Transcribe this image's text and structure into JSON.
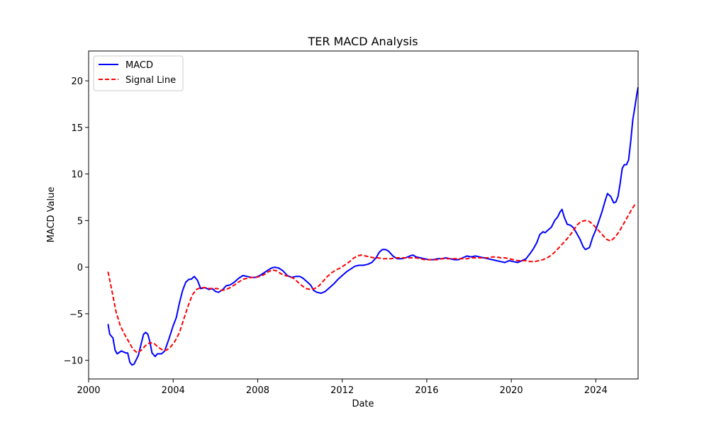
{
  "chart_data": {
    "type": "line",
    "title": "TER MACD Analysis",
    "xlabel": "Date",
    "ylabel": "MACD Value",
    "xlim": [
      2000.0,
      2026.0
    ],
    "ylim": [
      -12.0,
      23.2
    ],
    "xticks": [
      {
        "value": 2000,
        "label": "2000"
      },
      {
        "value": 2004,
        "label": "2004"
      },
      {
        "value": 2008,
        "label": "2008"
      },
      {
        "value": 2012,
        "label": "2012"
      },
      {
        "value": 2016,
        "label": "2016"
      },
      {
        "value": 2020,
        "label": "2020"
      },
      {
        "value": 2024,
        "label": "2024"
      }
    ],
    "yticks": [
      {
        "value": -10,
        "label": "−10"
      },
      {
        "value": -5,
        "label": "−5"
      },
      {
        "value": 0,
        "label": "0"
      },
      {
        "value": 5,
        "label": "5"
      },
      {
        "value": 10,
        "label": "10"
      },
      {
        "value": 15,
        "label": "15"
      },
      {
        "value": 20,
        "label": "20"
      }
    ],
    "grid": false,
    "legend_position": "upper-left",
    "series": [
      {
        "name": "MACD",
        "color": "#0000ff",
        "style": "solid",
        "points": [
          [
            2000.92,
            -6.1
          ],
          [
            2001.0,
            -7.2
          ],
          [
            2001.15,
            -7.6
          ],
          [
            2001.25,
            -8.9
          ],
          [
            2001.35,
            -9.3
          ],
          [
            2001.55,
            -9.0
          ],
          [
            2001.75,
            -9.2
          ],
          [
            2001.85,
            -9.2
          ],
          [
            2001.95,
            -10.2
          ],
          [
            2002.05,
            -10.5
          ],
          [
            2002.15,
            -10.4
          ],
          [
            2002.35,
            -9.5
          ],
          [
            2002.5,
            -8.1
          ],
          [
            2002.6,
            -7.2
          ],
          [
            2002.7,
            -7.0
          ],
          [
            2002.8,
            -7.2
          ],
          [
            2002.9,
            -8.0
          ],
          [
            2003.0,
            -9.2
          ],
          [
            2003.15,
            -9.6
          ],
          [
            2003.25,
            -9.3
          ],
          [
            2003.45,
            -9.3
          ],
          [
            2003.6,
            -9.0
          ],
          [
            2003.8,
            -7.7
          ],
          [
            2004.0,
            -6.3
          ],
          [
            2004.15,
            -5.4
          ],
          [
            2004.3,
            -3.8
          ],
          [
            2004.45,
            -2.5
          ],
          [
            2004.6,
            -1.6
          ],
          [
            2004.75,
            -1.3
          ],
          [
            2004.85,
            -1.3
          ],
          [
            2005.0,
            -1.0
          ],
          [
            2005.15,
            -1.4
          ],
          [
            2005.3,
            -2.3
          ],
          [
            2005.5,
            -2.2
          ],
          [
            2005.7,
            -2.4
          ],
          [
            2005.85,
            -2.3
          ],
          [
            2006.0,
            -2.6
          ],
          [
            2006.15,
            -2.7
          ],
          [
            2006.35,
            -2.4
          ],
          [
            2006.5,
            -2.0
          ],
          [
            2006.7,
            -1.9
          ],
          [
            2006.9,
            -1.6
          ],
          [
            2007.1,
            -1.2
          ],
          [
            2007.3,
            -0.9
          ],
          [
            2007.5,
            -1.0
          ],
          [
            2007.7,
            -1.1
          ],
          [
            2007.9,
            -1.1
          ],
          [
            2008.1,
            -0.9
          ],
          [
            2008.3,
            -0.6
          ],
          [
            2008.5,
            -0.3
          ],
          [
            2008.65,
            -0.1
          ],
          [
            2008.8,
            0.0
          ],
          [
            2009.0,
            -0.1
          ],
          [
            2009.2,
            -0.4
          ],
          [
            2009.4,
            -0.9
          ],
          [
            2009.6,
            -1.1
          ],
          [
            2009.8,
            -1.0
          ],
          [
            2010.0,
            -1.0
          ],
          [
            2010.15,
            -1.2
          ],
          [
            2010.3,
            -1.5
          ],
          [
            2010.5,
            -1.9
          ],
          [
            2010.65,
            -2.5
          ],
          [
            2010.8,
            -2.7
          ],
          [
            2011.0,
            -2.8
          ],
          [
            2011.2,
            -2.6
          ],
          [
            2011.4,
            -2.2
          ],
          [
            2011.6,
            -1.8
          ],
          [
            2011.8,
            -1.3
          ],
          [
            2012.0,
            -0.9
          ],
          [
            2012.2,
            -0.5
          ],
          [
            2012.4,
            -0.2
          ],
          [
            2012.6,
            0.1
          ],
          [
            2012.8,
            0.2
          ],
          [
            2013.0,
            0.2
          ],
          [
            2013.2,
            0.3
          ],
          [
            2013.4,
            0.5
          ],
          [
            2013.6,
            1.0
          ],
          [
            2013.75,
            1.6
          ],
          [
            2013.9,
            1.9
          ],
          [
            2014.05,
            1.9
          ],
          [
            2014.2,
            1.7
          ],
          [
            2014.4,
            1.2
          ],
          [
            2014.6,
            0.9
          ],
          [
            2014.8,
            0.9
          ],
          [
            2015.0,
            1.0
          ],
          [
            2015.2,
            1.2
          ],
          [
            2015.35,
            1.3
          ],
          [
            2015.5,
            1.1
          ],
          [
            2015.7,
            1.0
          ],
          [
            2015.9,
            0.9
          ],
          [
            2016.1,
            0.8
          ],
          [
            2016.3,
            0.8
          ],
          [
            2016.5,
            0.9
          ],
          [
            2016.7,
            0.9
          ],
          [
            2016.9,
            1.0
          ],
          [
            2017.1,
            0.9
          ],
          [
            2017.3,
            0.8
          ],
          [
            2017.5,
            0.8
          ],
          [
            2017.7,
            1.0
          ],
          [
            2017.9,
            1.2
          ],
          [
            2018.1,
            1.1
          ],
          [
            2018.3,
            1.2
          ],
          [
            2018.5,
            1.1
          ],
          [
            2018.7,
            1.0
          ],
          [
            2018.9,
            0.9
          ],
          [
            2019.1,
            0.8
          ],
          [
            2019.3,
            0.7
          ],
          [
            2019.5,
            0.6
          ],
          [
            2019.7,
            0.5
          ],
          [
            2019.9,
            0.7
          ],
          [
            2020.1,
            0.6
          ],
          [
            2020.3,
            0.5
          ],
          [
            2020.5,
            0.7
          ],
          [
            2020.7,
            0.9
          ],
          [
            2020.9,
            1.5
          ],
          [
            2021.05,
            2.0
          ],
          [
            2021.2,
            2.6
          ],
          [
            2021.35,
            3.5
          ],
          [
            2021.5,
            3.8
          ],
          [
            2021.6,
            3.7
          ],
          [
            2021.75,
            4.0
          ],
          [
            2021.9,
            4.3
          ],
          [
            2022.05,
            5.0
          ],
          [
            2022.2,
            5.4
          ],
          [
            2022.3,
            5.9
          ],
          [
            2022.4,
            6.2
          ],
          [
            2022.5,
            5.4
          ],
          [
            2022.65,
            4.6
          ],
          [
            2022.8,
            4.5
          ],
          [
            2022.95,
            4.2
          ],
          [
            2023.1,
            3.6
          ],
          [
            2023.25,
            3.0
          ],
          [
            2023.4,
            2.2
          ],
          [
            2023.5,
            1.9
          ],
          [
            2023.6,
            2.0
          ],
          [
            2023.7,
            2.1
          ],
          [
            2023.85,
            3.2
          ],
          [
            2024.0,
            4.0
          ],
          [
            2024.15,
            5.0
          ],
          [
            2024.3,
            6.0
          ],
          [
            2024.45,
            7.2
          ],
          [
            2024.55,
            7.9
          ],
          [
            2024.7,
            7.6
          ],
          [
            2024.85,
            6.9
          ],
          [
            2024.95,
            7.0
          ],
          [
            2025.05,
            7.6
          ],
          [
            2025.15,
            9.0
          ],
          [
            2025.25,
            10.6
          ],
          [
            2025.35,
            11.0
          ],
          [
            2025.45,
            11.0
          ],
          [
            2025.55,
            11.5
          ],
          [
            2025.65,
            13.5
          ],
          [
            2025.75,
            15.8
          ],
          [
            2025.85,
            17.2
          ],
          [
            2025.95,
            18.7
          ],
          [
            2026.0,
            19.3
          ]
        ]
      },
      {
        "name": "Signal Line",
        "color": "#ff0000",
        "style": "dashed",
        "points": [
          [
            2000.92,
            -0.5
          ],
          [
            2001.1,
            -2.5
          ],
          [
            2001.3,
            -4.8
          ],
          [
            2001.5,
            -6.3
          ],
          [
            2001.7,
            -7.2
          ],
          [
            2001.9,
            -8.0
          ],
          [
            2002.1,
            -8.8
          ],
          [
            2002.3,
            -9.2
          ],
          [
            2002.5,
            -8.9
          ],
          [
            2002.7,
            -8.4
          ],
          [
            2002.9,
            -8.1
          ],
          [
            2003.1,
            -8.2
          ],
          [
            2003.3,
            -8.6
          ],
          [
            2003.5,
            -8.9
          ],
          [
            2003.7,
            -8.9
          ],
          [
            2003.9,
            -8.5
          ],
          [
            2004.1,
            -7.9
          ],
          [
            2004.3,
            -7.0
          ],
          [
            2004.5,
            -5.6
          ],
          [
            2004.7,
            -4.2
          ],
          [
            2004.9,
            -3.0
          ],
          [
            2005.1,
            -2.4
          ],
          [
            2005.3,
            -2.2
          ],
          [
            2005.5,
            -2.2
          ],
          [
            2005.7,
            -2.3
          ],
          [
            2005.9,
            -2.3
          ],
          [
            2006.1,
            -2.3
          ],
          [
            2006.3,
            -2.5
          ],
          [
            2006.5,
            -2.4
          ],
          [
            2006.7,
            -2.2
          ],
          [
            2006.9,
            -1.9
          ],
          [
            2007.1,
            -1.6
          ],
          [
            2007.3,
            -1.3
          ],
          [
            2007.5,
            -1.2
          ],
          [
            2007.7,
            -1.1
          ],
          [
            2007.9,
            -1.1
          ],
          [
            2008.1,
            -1.0
          ],
          [
            2008.3,
            -0.8
          ],
          [
            2008.5,
            -0.5
          ],
          [
            2008.7,
            -0.3
          ],
          [
            2008.9,
            -0.4
          ],
          [
            2009.1,
            -0.7
          ],
          [
            2009.3,
            -0.9
          ],
          [
            2009.5,
            -1.0
          ],
          [
            2009.7,
            -1.2
          ],
          [
            2009.9,
            -1.6
          ],
          [
            2010.1,
            -2.0
          ],
          [
            2010.3,
            -2.3
          ],
          [
            2010.5,
            -2.4
          ],
          [
            2010.7,
            -2.3
          ],
          [
            2010.9,
            -2.0
          ],
          [
            2011.1,
            -1.5
          ],
          [
            2011.3,
            -1.0
          ],
          [
            2011.5,
            -0.6
          ],
          [
            2011.7,
            -0.3
          ],
          [
            2011.9,
            -0.1
          ],
          [
            2012.1,
            0.2
          ],
          [
            2012.3,
            0.5
          ],
          [
            2012.5,
            0.9
          ],
          [
            2012.7,
            1.2
          ],
          [
            2012.9,
            1.3
          ],
          [
            2013.1,
            1.2
          ],
          [
            2013.3,
            1.1
          ],
          [
            2013.5,
            1.0
          ],
          [
            2013.7,
            1.0
          ],
          [
            2013.9,
            0.9
          ],
          [
            2014.1,
            0.9
          ],
          [
            2014.3,
            0.9
          ],
          [
            2014.5,
            1.0
          ],
          [
            2014.7,
            1.0
          ],
          [
            2014.9,
            1.0
          ],
          [
            2015.1,
            1.0
          ],
          [
            2015.3,
            1.0
          ],
          [
            2015.5,
            1.0
          ],
          [
            2015.7,
            0.9
          ],
          [
            2015.9,
            0.8
          ],
          [
            2016.1,
            0.8
          ],
          [
            2016.3,
            0.8
          ],
          [
            2016.5,
            0.8
          ],
          [
            2016.7,
            0.9
          ],
          [
            2016.9,
            0.9
          ],
          [
            2017.1,
            0.9
          ],
          [
            2017.3,
            0.9
          ],
          [
            2017.5,
            0.9
          ],
          [
            2017.7,
            0.9
          ],
          [
            2017.9,
            0.9
          ],
          [
            2018.1,
            1.0
          ],
          [
            2018.3,
            1.0
          ],
          [
            2018.5,
            1.0
          ],
          [
            2018.7,
            1.0
          ],
          [
            2018.9,
            1.0
          ],
          [
            2019.1,
            1.1
          ],
          [
            2019.3,
            1.1
          ],
          [
            2019.5,
            1.0
          ],
          [
            2019.7,
            1.0
          ],
          [
            2019.9,
            0.9
          ],
          [
            2020.1,
            0.8
          ],
          [
            2020.3,
            0.7
          ],
          [
            2020.5,
            0.7
          ],
          [
            2020.7,
            0.7
          ],
          [
            2020.9,
            0.6
          ],
          [
            2021.1,
            0.6
          ],
          [
            2021.3,
            0.7
          ],
          [
            2021.5,
            0.8
          ],
          [
            2021.7,
            1.0
          ],
          [
            2021.9,
            1.3
          ],
          [
            2022.1,
            1.7
          ],
          [
            2022.3,
            2.2
          ],
          [
            2022.5,
            2.7
          ],
          [
            2022.7,
            3.2
          ],
          [
            2022.9,
            3.8
          ],
          [
            2023.1,
            4.5
          ],
          [
            2023.3,
            4.9
          ],
          [
            2023.5,
            5.0
          ],
          [
            2023.7,
            4.9
          ],
          [
            2023.9,
            4.5
          ],
          [
            2024.1,
            4.0
          ],
          [
            2024.3,
            3.5
          ],
          [
            2024.5,
            3.0
          ],
          [
            2024.7,
            2.8
          ],
          [
            2024.9,
            3.2
          ],
          [
            2025.1,
            3.8
          ],
          [
            2025.3,
            4.6
          ],
          [
            2025.5,
            5.4
          ],
          [
            2025.7,
            6.2
          ],
          [
            2025.9,
            6.9
          ]
        ]
      }
    ]
  }
}
